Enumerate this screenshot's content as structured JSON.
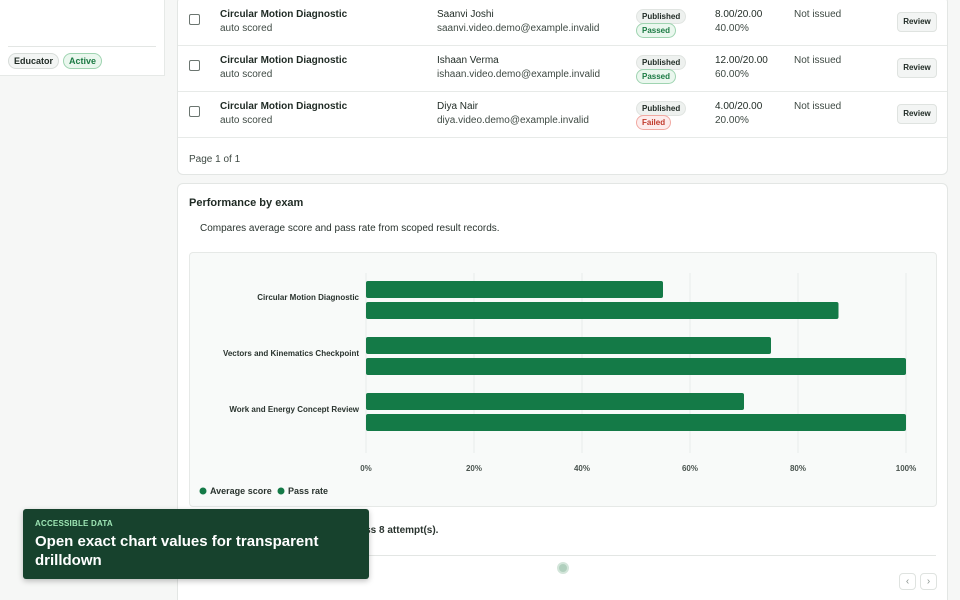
{
  "sidebar": {
    "badges": [
      "Educator",
      "Active"
    ]
  },
  "results": {
    "rows": [
      {
        "exam": "Circular Motion Diagnostic",
        "mode": "auto scored",
        "name": "Saanvi Joshi",
        "email": "saanvi.video.demo@example.invalid",
        "status": "Published",
        "outcome": "Passed",
        "score": "8.00/20.00",
        "percent": "40.00%",
        "certificate": "Not issued",
        "action": "Review"
      },
      {
        "exam": "Circular Motion Diagnostic",
        "mode": "auto scored",
        "name": "Ishaan Verma",
        "email": "ishaan.video.demo@example.invalid",
        "status": "Published",
        "outcome": "Passed",
        "score": "12.00/20.00",
        "percent": "60.00%",
        "certificate": "Not issued",
        "action": "Review"
      },
      {
        "exam": "Circular Motion Diagnostic",
        "mode": "auto scored",
        "name": "Diya Nair",
        "email": "diya.video.demo@example.invalid",
        "status": "Published",
        "outcome": "Failed",
        "score": "4.00/20.00",
        "percent": "20.00%",
        "certificate": "Not issued",
        "action": "Review"
      }
    ],
    "page_info": "Page 1 of 1"
  },
  "performance": {
    "title": "Performance by exam",
    "subtitle": "Compares average score and pass rate from scoped result records.",
    "summary": "...est average score at 55.00% across 8 attempt(s).",
    "colors": {
      "average": "#147a47",
      "pass": "#147a47"
    }
  },
  "chart_data": {
    "type": "bar",
    "orientation": "horizontal",
    "categories": [
      "Circular Motion Diagnostic",
      "Vectors and Kinematics Checkpoint",
      "Work and Energy Concept Review"
    ],
    "series": [
      {
        "name": "Average score",
        "values": [
          55,
          75,
          70
        ]
      },
      {
        "name": "Pass rate",
        "values": [
          87.5,
          100,
          100
        ]
      }
    ],
    "xlim": [
      0,
      100
    ],
    "ticks": [
      "0%",
      "20%",
      "40%",
      "60%",
      "80%",
      "100%"
    ],
    "grid": true,
    "legend": "bottom-left"
  },
  "toast": {
    "eyebrow": "ACCESSIBLE DATA",
    "text": "Open exact chart values for transparent drilldown"
  },
  "nav": {
    "prev": "‹",
    "next": "›"
  }
}
